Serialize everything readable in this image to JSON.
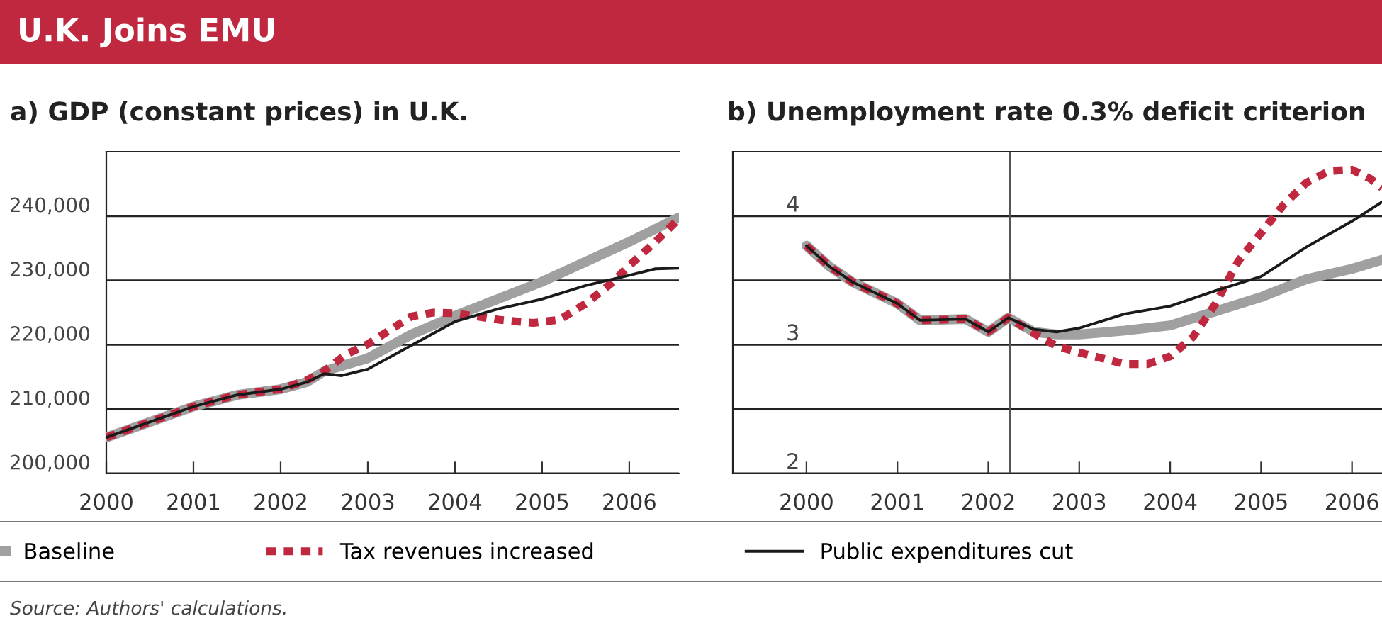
{
  "chart_data": [
    {
      "type": "line",
      "title": "a) GDP (constant prices) in U.K.",
      "annotations": [
        "U.K. Joins EMU",
        "Source: Authors' calculations."
      ],
      "xlim": [
        2000,
        2006.57
      ],
      "xticks": [
        2000,
        2001,
        2002,
        2003,
        2004,
        2005,
        2006
      ],
      "ylim": [
        200000,
        250000
      ],
      "yticks": [
        {
          "value": 200000,
          "label": "200,000"
        },
        {
          "value": 210000,
          "label": "210,000"
        },
        {
          "value": 220000,
          "label": "220,000"
        },
        {
          "value": 230000,
          "label": "230,000"
        },
        {
          "value": 240000,
          "label": "240,000"
        }
      ],
      "grid": "y",
      "legend": "bottom",
      "series": [
        {
          "name": "Baseline",
          "color": "#a0a0a0",
          "line_style": "solid",
          "x": [
            2000,
            2001,
            2001.5,
            2002,
            2002.3,
            2002.5,
            2003,
            2003.5,
            2004,
            2005,
            2006,
            2006.57
          ],
          "values": [
            205600,
            210400,
            212200,
            213100,
            214200,
            215900,
            217900,
            221600,
            224500,
            229800,
            236000,
            239800
          ]
        },
        {
          "name": "Tax revenues increased",
          "color": "#c0283f",
          "line_style": "dotted",
          "x": [
            2000,
            2001,
            2001.5,
            2002,
            2002.3,
            2002.5,
            2002.75,
            2003,
            2003.5,
            2003.75,
            2004,
            2004.5,
            2004.9,
            2005.2,
            2005.5,
            2005.8,
            2006,
            2006.3,
            2006.57
          ],
          "values": [
            205600,
            210400,
            212200,
            213100,
            214500,
            215900,
            218500,
            220100,
            224400,
            225000,
            224900,
            223900,
            223400,
            223900,
            226400,
            229600,
            232300,
            236000,
            239600
          ]
        },
        {
          "name": "Public expenditures cut",
          "color": "#1a1a1a",
          "line_style": "solid",
          "x": [
            2000,
            2001,
            2001.5,
            2002,
            2002.3,
            2002.5,
            2002.7,
            2003,
            2003.5,
            2004,
            2004.5,
            2005,
            2005.5,
            2006,
            2006.3,
            2006.57
          ],
          "values": [
            205600,
            210400,
            212200,
            213100,
            214200,
            215500,
            215200,
            216200,
            219900,
            223600,
            225600,
            227100,
            229200,
            230800,
            231800,
            231900
          ]
        }
      ]
    },
    {
      "type": "line",
      "title": "b) Unemployment rate 0.3% deficit criterion",
      "xlim": [
        1999.19,
        2006.33
      ],
      "xticks": [
        2000,
        2001,
        2002,
        2003,
        2004,
        2005,
        2006
      ],
      "ylim": [
        2,
        4.5
      ],
      "yticks": [
        2,
        {
          "value": 2.5,
          "label": null
        },
        3,
        {
          "value": 3.5,
          "label": null
        },
        4
      ],
      "grid": "y",
      "ref_lines": [
        {
          "axis": "x",
          "value": 2002.24,
          "color": "#555555"
        }
      ],
      "series": [
        {
          "color": "#a0a0a0",
          "line_style": "solid",
          "x": [
            2000,
            2000.25,
            2000.5,
            2001,
            2001.25,
            2001.75,
            2002,
            2002.22,
            2002.5,
            2002.75,
            2003,
            2003.5,
            2004,
            2004.5,
            2005,
            2005.5,
            2006,
            2006.33
          ],
          "values": [
            3.77,
            3.61,
            3.49,
            3.32,
            3.19,
            3.2,
            3.1,
            3.21,
            3.1,
            3.08,
            3.08,
            3.11,
            3.15,
            3.26,
            3.37,
            3.51,
            3.59,
            3.66
          ]
        },
        {
          "color": "#c0283f",
          "line_style": "dotted",
          "x": [
            2000,
            2000.25,
            2000.5,
            2001,
            2001.25,
            2001.75,
            2002,
            2002.22,
            2002.5,
            2002.75,
            2003,
            2003.5,
            2003.75,
            2004,
            2004.25,
            2004.5,
            2004.75,
            2005,
            2005.25,
            2005.5,
            2005.75,
            2006,
            2006.2,
            2006.33
          ],
          "values": [
            3.77,
            3.61,
            3.49,
            3.32,
            3.19,
            3.2,
            3.1,
            3.21,
            3.09,
            2.99,
            2.94,
            2.85,
            2.85,
            2.91,
            3.06,
            3.32,
            3.65,
            3.87,
            4.09,
            4.26,
            4.35,
            4.36,
            4.29,
            4.22
          ]
        },
        {
          "color": "#1a1a1a",
          "line_style": "solid",
          "x": [
            2000,
            2000.25,
            2000.5,
            2001,
            2001.25,
            2001.75,
            2002,
            2002.22,
            2002.5,
            2002.75,
            2003,
            2003.5,
            2004,
            2004.5,
            2005,
            2005.5,
            2006,
            2006.33
          ],
          "values": [
            3.77,
            3.61,
            3.49,
            3.32,
            3.19,
            3.2,
            3.1,
            3.21,
            3.12,
            3.1,
            3.13,
            3.24,
            3.3,
            3.42,
            3.53,
            3.76,
            3.96,
            4.11
          ]
        }
      ]
    }
  ]
}
